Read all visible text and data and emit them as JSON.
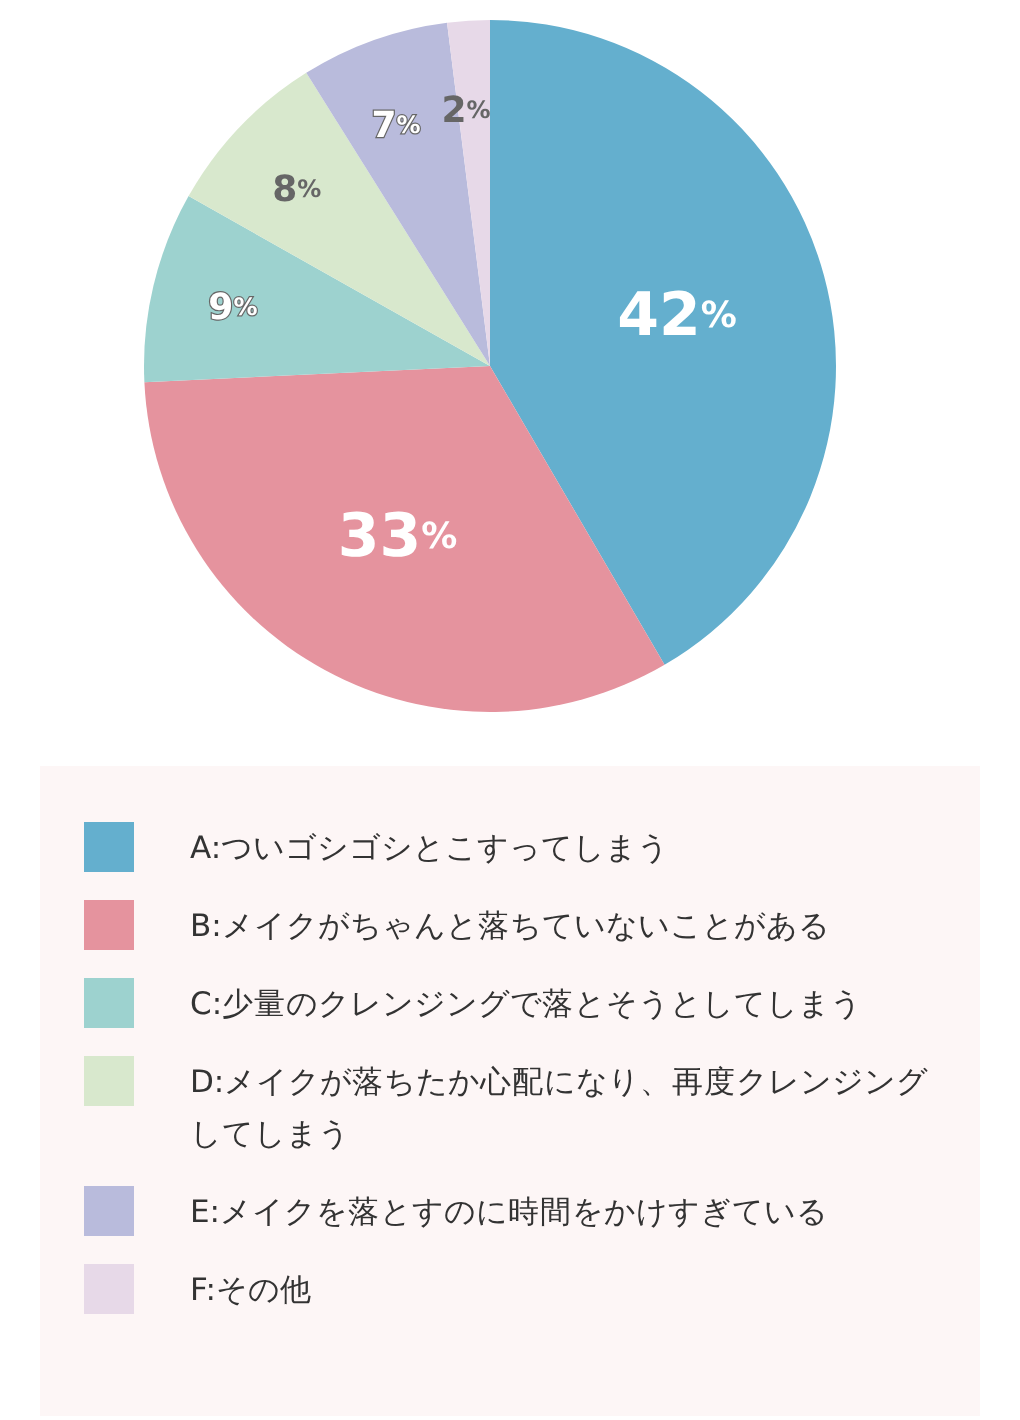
{
  "chart_data": {
    "type": "pie",
    "categories": [
      "A:ついゴシゴシとこすってしまう",
      "B:メイクがちゃんと落ちていないことがある",
      "C:少量のクレンジングで落とそうとしてしまう",
      "D:メイクが落ちたか心配になり、再度クレンジングしてしまう",
      "E:メイクを落とすのに時間をかけすぎている",
      "F:その他"
    ],
    "values": [
      42,
      33,
      9,
      8,
      7,
      2
    ],
    "colors": [
      "#64afce",
      "#e5939e",
      "#9dd2cf",
      "#d8e8cd",
      "#b9bbdc",
      "#e7d9e8"
    ],
    "value_labels": [
      "42%",
      "33%",
      "9%",
      "8%",
      "7%",
      "2%"
    ],
    "legend": "bottom"
  }
}
